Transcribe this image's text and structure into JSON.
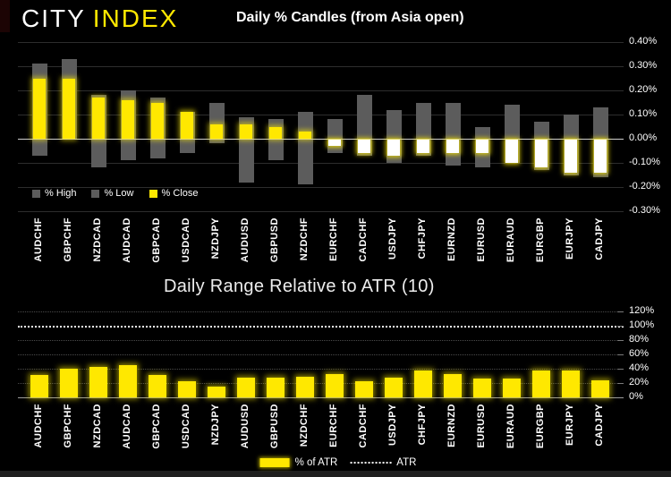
{
  "header": {
    "logo_city": "CITY",
    "logo_index": "INDEX"
  },
  "colors": {
    "background": "#000000",
    "brand_yellow": "#FFE800",
    "bar_gray": "#5C5C5C",
    "close_positive_fill": "#FFE800",
    "close_negative_fill": "#FFFFFF",
    "gridline": "#2D2D2D",
    "zero_line": "#CFCFCF",
    "atr_reference_line": "#FFFFFF",
    "axis_line": "#9B9B9B",
    "text": "#FFFFFF",
    "bottom_band": "#1F1F1F",
    "corner_accent": "#1C0404"
  },
  "chart_data": [
    {
      "type": "bar",
      "subtype": "high-low-close candles",
      "title": "Daily % Candles (from Asia open)",
      "categories": [
        "AUDCHF",
        "GBPCHF",
        "NZDCAD",
        "AUDCAD",
        "GBPCAD",
        "USDCAD",
        "NZDJPY",
        "AUDUSD",
        "GBPUSD",
        "NZDCHF",
        "EURCHF",
        "CADCHF",
        "USDJPY",
        "CHFJPY",
        "EURNZD",
        "EURUSD",
        "EURAUD",
        "EURGBP",
        "EURJPY",
        "CADJPY"
      ],
      "series": [
        {
          "name": "% High",
          "color": "#5C5C5C",
          "values": [
            0.31,
            0.33,
            0.18,
            0.2,
            0.17,
            0.11,
            0.15,
            0.09,
            0.08,
            0.11,
            0.08,
            0.18,
            0.12,
            0.15,
            0.15,
            0.05,
            0.14,
            0.07,
            0.1,
            0.13
          ]
        },
        {
          "name": "% Low",
          "color": "#5C5C5C",
          "values": [
            -0.07,
            0.0,
            -0.12,
            -0.09,
            -0.08,
            -0.06,
            -0.02,
            -0.18,
            -0.09,
            -0.19,
            -0.06,
            -0.07,
            -0.1,
            -0.07,
            -0.11,
            -0.12,
            -0.1,
            -0.13,
            -0.15,
            -0.16
          ]
        },
        {
          "name": "% Close",
          "color": "#FFE800",
          "negative_fill": "#FFFFFF",
          "values": [
            0.25,
            0.25,
            0.17,
            0.16,
            0.15,
            0.11,
            0.06,
            0.06,
            0.05,
            0.03,
            -0.03,
            -0.06,
            -0.07,
            -0.06,
            -0.06,
            -0.06,
            -0.1,
            -0.12,
            -0.14,
            -0.14
          ]
        }
      ],
      "ylim": [
        -0.3,
        0.4
      ],
      "ytick_labels": [
        "0.40%",
        "0.30%",
        "0.20%",
        "0.10%",
        "0.00%",
        "-0.10%",
        "-0.20%",
        "-0.30%"
      ],
      "y_axis_side": "right",
      "grid": true,
      "legend_position": "bottom-left"
    },
    {
      "type": "bar",
      "title": "Daily Range Relative to ATR (10)",
      "categories": [
        "AUDCHF",
        "GBPCHF",
        "NZDCAD",
        "AUDCAD",
        "GBPCAD",
        "USDCAD",
        "NZDJPY",
        "AUDUSD",
        "GBPUSD",
        "NZDCHF",
        "EURCHF",
        "CADCHF",
        "USDJPY",
        "CHFJPY",
        "EURNZD",
        "EURUSD",
        "EURAUD",
        "EURGBP",
        "EURJPY",
        "CADJPY"
      ],
      "series": [
        {
          "name": "% of ATR",
          "color": "#FFE800",
          "values": [
            31,
            40,
            43,
            45,
            31,
            22,
            15,
            28,
            27,
            29,
            33,
            23,
            28,
            38,
            32,
            26,
            26,
            37,
            37,
            24
          ]
        }
      ],
      "reference_line": {
        "name": "ATR",
        "value": 100,
        "style": "dotted",
        "color": "#FFFFFF"
      },
      "ylim": [
        0,
        120
      ],
      "ytick_labels": [
        "120%",
        "100%",
        "80%",
        "60%",
        "40%",
        "20%",
        "0%"
      ],
      "y_axis_side": "right",
      "grid": true,
      "legend_position": "bottom-center"
    }
  ]
}
